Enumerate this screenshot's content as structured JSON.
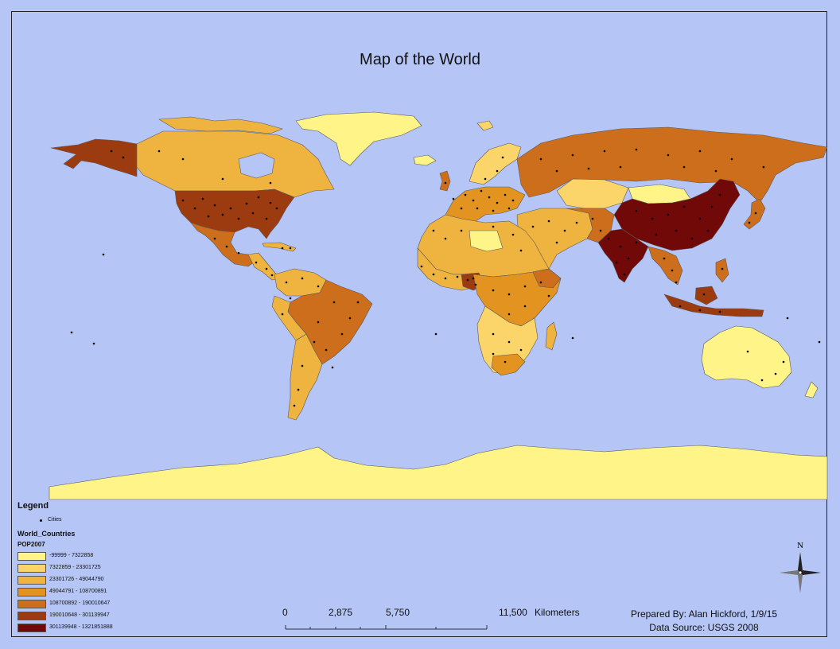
{
  "title": "Map of the World",
  "colors": {
    "ocean": "#b5c5f5",
    "class1": "#fef488",
    "class2": "#fbd56a",
    "class3": "#efb33f",
    "class4": "#e39320",
    "class5": "#cc6e1c",
    "class6": "#9c3b10",
    "class7": "#720909",
    "city": "#000000"
  },
  "legend": {
    "title": "Legend",
    "cities_label": "Cities",
    "layer_name": "World_Countries",
    "field_name": "POP2007",
    "classes": [
      {
        "label": "-99999 - 7322858",
        "color": "#fef488"
      },
      {
        "label": "7322859 - 23301725",
        "color": "#fbd56a"
      },
      {
        "label": "23301726 - 49044790",
        "color": "#efb33f"
      },
      {
        "label": "49044791 - 108700891",
        "color": "#e39320"
      },
      {
        "label": "108700892 - 190010647",
        "color": "#cc6e1c"
      },
      {
        "label": "190010648 - 301139947",
        "color": "#9c3b10"
      },
      {
        "label": "301139948 - 1321851888",
        "color": "#720909"
      }
    ]
  },
  "scale": {
    "labels": [
      "0",
      "2,875",
      "5,750",
      "11,500"
    ],
    "unit": "Kilometers"
  },
  "credits": {
    "prepared_by": "Prepared By: Alan Hickford, 1/9/15",
    "data_source": "Data Source: USGS 2008"
  },
  "north_arrow": {
    "letter": "N"
  }
}
